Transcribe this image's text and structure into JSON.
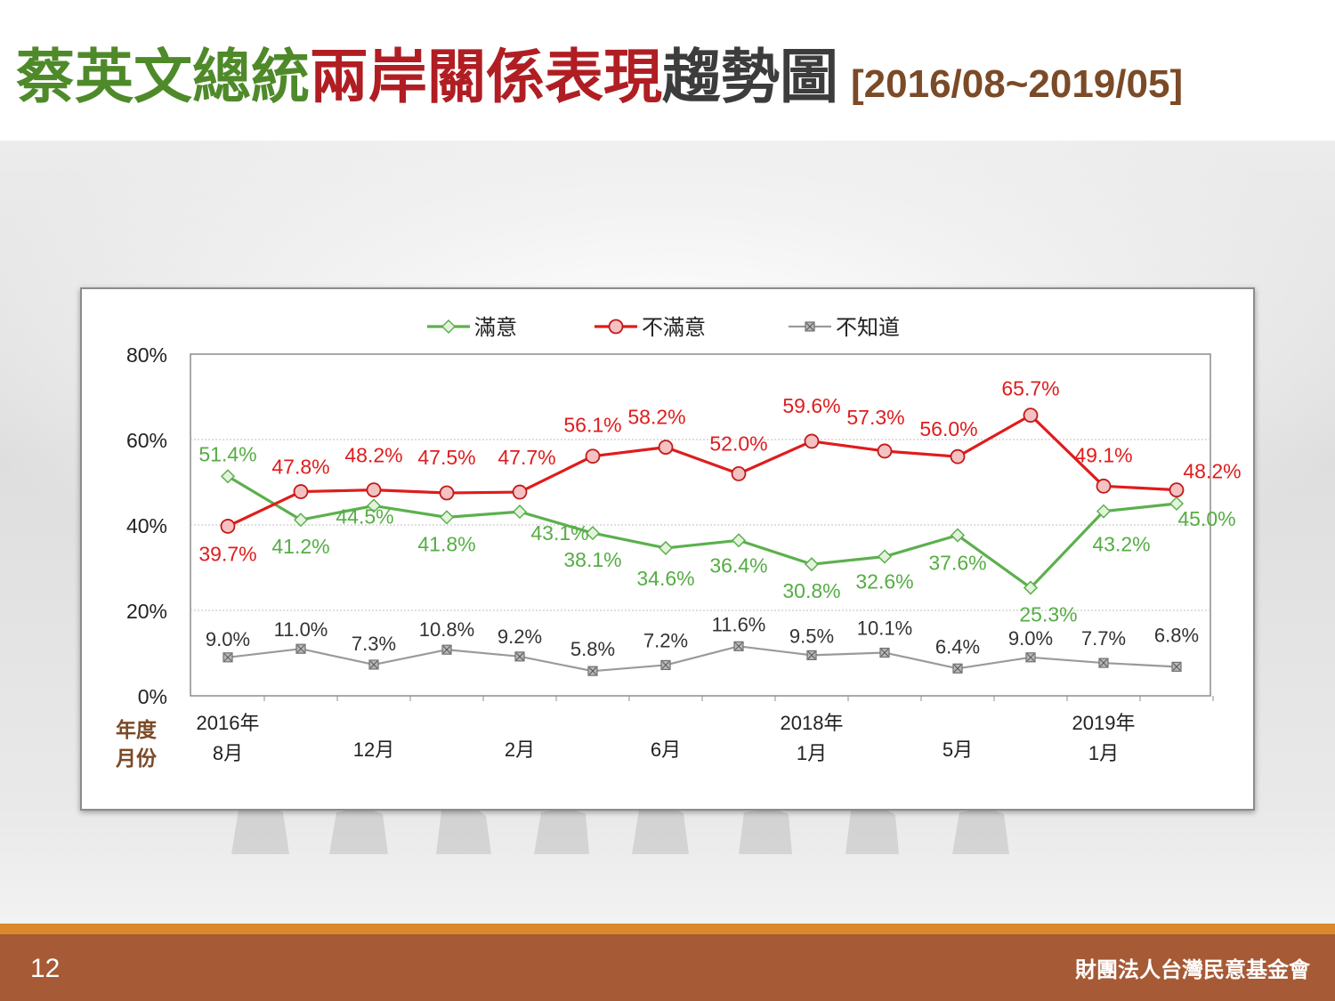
{
  "slide": {
    "title_part1": "蔡英文總統",
    "title_part2": "兩岸關係表現",
    "title_part3": "趨勢圖",
    "title_range": "[2016/08~2019/05]",
    "page_number": "12",
    "organization": "財團法人台灣民意基金會"
  },
  "colors": {
    "satisfied": "#5cb04d",
    "satisfied_label": "#55ad44",
    "dissatisfied": "#e01c1c",
    "dissatisfied_fill": "#f4c2c2",
    "unknown": "#9a9a9a",
    "unknown_label": "#333333",
    "month_axis_label": "#7b4a27"
  },
  "chart_data": {
    "type": "line",
    "y_tick_labels": [
      "0%",
      "20%",
      "40%",
      "60%",
      "80%"
    ],
    "ylim": [
      0,
      80
    ],
    "grid": true,
    "legend_position": "top",
    "axis_row_labels": [
      "年度",
      "月份"
    ],
    "x_tick_labels": [
      {
        "index": 0,
        "year": "2016年",
        "month": "8月"
      },
      {
        "index": 2,
        "year": "",
        "month": "12月"
      },
      {
        "index": 4,
        "year": "",
        "month": "2月"
      },
      {
        "index": 6,
        "year": "",
        "month": "6月"
      },
      {
        "index": 8,
        "year": "2018年",
        "month": "1月"
      },
      {
        "index": 10,
        "year": "",
        "month": "5月"
      },
      {
        "index": 12,
        "year": "2019年",
        "month": "1月"
      }
    ],
    "point_count": 14,
    "series": [
      {
        "name": "滿意",
        "values": [
          51.4,
          41.2,
          44.5,
          41.8,
          43.1,
          38.1,
          34.6,
          36.4,
          30.8,
          32.6,
          37.6,
          25.3,
          43.2,
          45.0
        ],
        "labels": [
          "51.4%",
          "41.2%",
          "44.5%",
          "41.8%",
          "43.1%",
          "38.1%",
          "34.6%",
          "36.4%",
          "30.8%",
          "32.6%",
          "37.6%",
          "25.3%",
          "43.2%",
          "45.0%"
        ]
      },
      {
        "name": "不滿意",
        "values": [
          39.7,
          47.8,
          48.2,
          47.5,
          47.7,
          56.1,
          58.2,
          52.0,
          59.6,
          57.3,
          56.0,
          65.7,
          49.1,
          48.2
        ],
        "labels": [
          "39.7%",
          "47.8%",
          "48.2%",
          "47.5%",
          "47.7%",
          "56.1%",
          "58.2%",
          "52.0%",
          "59.6%",
          "57.3%",
          "56.0%",
          "65.7%",
          "49.1%",
          "48.2%"
        ]
      },
      {
        "name": "不知道",
        "values": [
          9.0,
          11.0,
          7.3,
          10.8,
          9.2,
          5.8,
          7.2,
          11.6,
          9.5,
          10.1,
          6.4,
          9.0,
          7.7,
          6.8
        ],
        "labels": [
          "9.0%",
          "11.0%",
          "7.3%",
          "10.8%",
          "9.2%",
          "5.8%",
          "7.2%",
          "11.6%",
          "9.5%",
          "10.1%",
          "6.4%",
          "9.0%",
          "7.7%",
          "6.8%"
        ]
      }
    ]
  }
}
